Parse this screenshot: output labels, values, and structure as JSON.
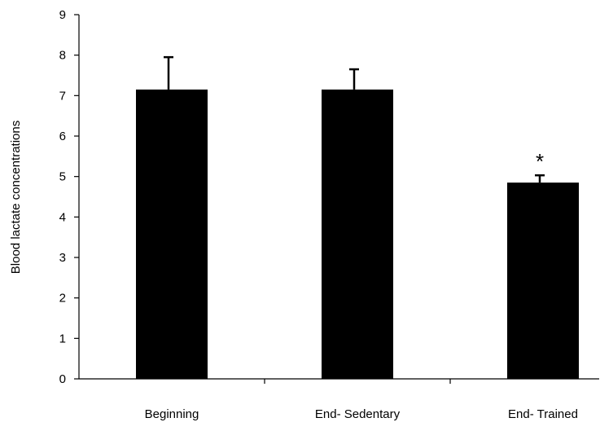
{
  "chart_data": {
    "type": "bar",
    "title": "",
    "xlabel": "",
    "ylabel": "Blood lactate concentrations",
    "categories": [
      "Beginning",
      "End- Sedentary",
      "End- Trained"
    ],
    "values": [
      7.15,
      7.15,
      4.85
    ],
    "error_upper": [
      0.8,
      0.5,
      0.18
    ],
    "annotations": [
      "",
      "",
      "*"
    ],
    "ylim": [
      0,
      9
    ],
    "yticks": [
      "0",
      "1",
      "2",
      "3",
      "4",
      "5",
      "6",
      "7",
      "8",
      "9"
    ],
    "grid": false,
    "legend": "none",
    "bar_color": "#000000"
  }
}
